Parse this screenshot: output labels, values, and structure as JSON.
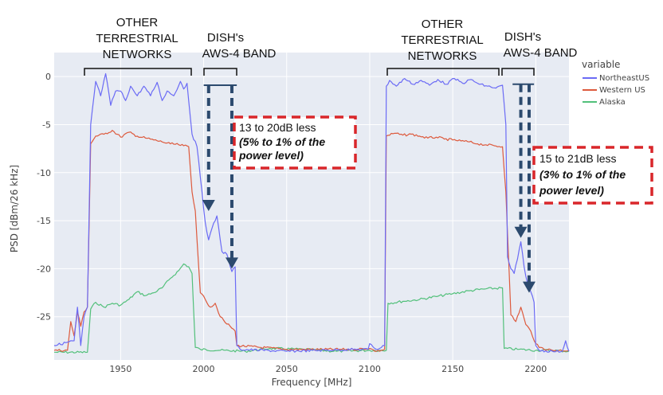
{
  "chart_data": {
    "type": "line",
    "xlabel": "Frequency [MHz]",
    "ylabel": "PSD [dBm/26 kHz]",
    "xlim": [
      1910,
      2220
    ],
    "ylim": [
      -29.5,
      2.5
    ],
    "xticks": [
      1950,
      2000,
      2050,
      2100,
      2150,
      2200
    ],
    "yticks": [
      0,
      -5,
      -10,
      -15,
      -20,
      -25
    ],
    "legend": {
      "title": "variable",
      "position": "right",
      "entries": [
        {
          "name": "NortheastUS",
          "color": "#6b6bf5"
        },
        {
          "name": "Western US",
          "color": "#dd5a3d"
        },
        {
          "name": "Alaska",
          "color": "#52c07a"
        }
      ]
    },
    "series": [
      {
        "name": "NortheastUS",
        "color": "#6b6bf5",
        "x": [
          1910,
          1922,
          1924,
          1926,
          1928,
          1930,
          1932,
          1935,
          1938,
          1941,
          1944,
          1947,
          1950,
          1953,
          1956,
          1960,
          1964,
          1968,
          1972,
          1975,
          1978,
          1982,
          1986,
          1988,
          1990,
          1993,
          1996,
          1999,
          2001,
          2003,
          2005,
          2008,
          2011,
          2014,
          2017,
          2019,
          2020,
          2022,
          2050,
          2090,
          2099,
          2100,
          2104,
          2109,
          2110,
          2112,
          2116,
          2121,
          2126,
          2131,
          2136,
          2141,
          2146,
          2151,
          2156,
          2161,
          2166,
          2171,
          2176,
          2180,
          2182,
          2183,
          2185,
          2187,
          2189,
          2191,
          2193,
          2195,
          2197,
          2199,
          2200,
          2202,
          2210,
          2216,
          2218,
          2220
        ],
        "y": [
          -28,
          -27.5,
          -24,
          -28,
          -25,
          -24,
          -5,
          -0.5,
          -2,
          0.3,
          -3,
          -1.5,
          -1.5,
          -2.5,
          -1,
          -2,
          -1,
          -2,
          -0.6,
          -2.5,
          -1.5,
          -2,
          -0.5,
          -1.3,
          -0.7,
          -6,
          -7.3,
          -12,
          -15.2,
          -17,
          -15.8,
          -14.5,
          -18.2,
          -18.5,
          -20.3,
          -19.8,
          -28,
          -28.4,
          -28.6,
          -28.4,
          -28.4,
          -27.8,
          -28.4,
          -28,
          -1,
          -0.4,
          -1,
          -0.2,
          -0.8,
          -0.4,
          -0.9,
          -0.3,
          -0.8,
          -0.2,
          -0.7,
          -0.3,
          -0.8,
          -1,
          -1.2,
          -0.9,
          -5,
          -18.8,
          -20,
          -20.5,
          -19,
          -17.2,
          -19.8,
          -21.5,
          -22.4,
          -23.5,
          -28,
          -28.5,
          -28.6,
          -28.6,
          -27.5,
          -28.6
        ]
      },
      {
        "name": "Western US",
        "color": "#dd5a3d",
        "x": [
          1910,
          1918,
          1920,
          1922,
          1924,
          1926,
          1928,
          1930,
          1932,
          1935,
          1940,
          1945,
          1950,
          1955,
          1960,
          1965,
          1970,
          1975,
          1980,
          1985,
          1988,
          1991,
          1993,
          1995,
          1998,
          2001,
          2004,
          2007,
          2010,
          2013,
          2016,
          2019,
          2020,
          2050,
          2090,
          2100,
          2104,
          2109,
          2110,
          2115,
          2120,
          2125,
          2130,
          2135,
          2140,
          2145,
          2150,
          2155,
          2160,
          2165,
          2170,
          2175,
          2180,
          2182,
          2185,
          2188,
          2191,
          2194,
          2197,
          2200,
          2202,
          2210,
          2220
        ],
        "y": [
          -28.5,
          -28.5,
          -25.5,
          -27,
          -24.5,
          -26,
          -24.5,
          -24,
          -7,
          -6.2,
          -6,
          -5.6,
          -6.3,
          -5.8,
          -6.2,
          -6.4,
          -6.6,
          -6.8,
          -7,
          -7.1,
          -7.2,
          -7.3,
          -12,
          -14,
          -22.5,
          -23.2,
          -24,
          -23.6,
          -25,
          -25.6,
          -26,
          -26.5,
          -28,
          -28.4,
          -28.4,
          -28.3,
          -28.6,
          -28.4,
          -6.2,
          -5.9,
          -6.1,
          -6,
          -6.2,
          -6.4,
          -6.3,
          -6.5,
          -6.6,
          -6.7,
          -6.8,
          -7,
          -7.1,
          -7.2,
          -7.3,
          -12,
          -24.8,
          -25.5,
          -24,
          -25.8,
          -26.5,
          -27.8,
          -28.2,
          -28.5,
          -28.5
        ]
      },
      {
        "name": "Alaska",
        "color": "#52c07a",
        "x": [
          1910,
          1930,
          1932,
          1935,
          1940,
          1945,
          1950,
          1955,
          1960,
          1965,
          1970,
          1975,
          1980,
          1985,
          1988,
          1991,
          1993,
          1995,
          1998,
          2010,
          2025,
          2040,
          2060,
          2080,
          2100,
          2110,
          2111,
          2120,
          2130,
          2140,
          2150,
          2160,
          2170,
          2180,
          2181,
          2190,
          2200,
          2210,
          2220
        ],
        "y": [
          -28.7,
          -28.7,
          -24.2,
          -23.5,
          -24,
          -23.6,
          -23.8,
          -23.2,
          -22.4,
          -22.8,
          -22.5,
          -22,
          -21,
          -20.2,
          -19.5,
          -19.8,
          -20.5,
          -28.2,
          -28.4,
          -28.5,
          -28.6,
          -28.3,
          -28.4,
          -28.6,
          -28.5,
          -28.5,
          -23.6,
          -23.4,
          -23.2,
          -22.9,
          -22.6,
          -22.3,
          -22.1,
          -22,
          -28.3,
          -28.4,
          -28.5,
          -28.5,
          -28.6
        ]
      }
    ],
    "annotations": {
      "bands": [
        {
          "label": [
            "OTHER",
            "TERRESTRIAL",
            "NETWORKS"
          ],
          "x0": 1928,
          "x1": 1991
        },
        {
          "label": [
            "DISH's",
            "AWS-4 BAND"
          ],
          "x0": 2000,
          "x1": 2019
        },
        {
          "label": [
            "OTHER",
            "TERRESTRIAL",
            "NETWORKS"
          ],
          "x0": 2110,
          "x1": 2180
        },
        {
          "label": [
            "DISH's",
            "AWS-4 BAND"
          ],
          "x0": 2180,
          "x1": 2200
        }
      ],
      "callouts": [
        {
          "lines": [
            "13 to 20dB less",
            "(5% to 1% of the",
            "power level)"
          ]
        },
        {
          "lines": [
            "15 to 21dB less",
            "(3% to 1% of the",
            "power level)"
          ]
        }
      ],
      "arrows": [
        {
          "x": 2003,
          "from": -0.9,
          "to": -14
        },
        {
          "x": 2017,
          "from": -0.9,
          "to": -20
        },
        {
          "x": 2191,
          "from": -0.8,
          "to": -16.8
        },
        {
          "x": 2196,
          "from": -0.8,
          "to": -22.5
        }
      ]
    }
  }
}
